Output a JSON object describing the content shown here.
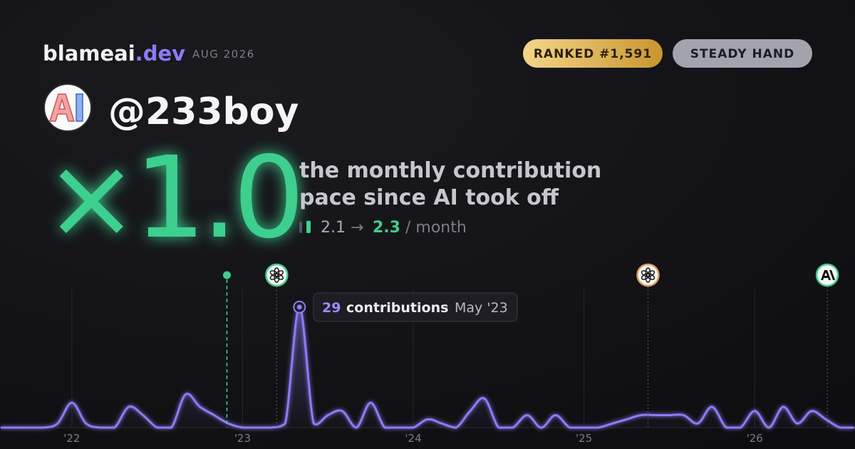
{
  "header": {
    "brand": "blameai",
    "brand_suffix": ".dev",
    "date": "AUG 2026",
    "badges": [
      "RANKED #1,591",
      "STEADY HAND"
    ]
  },
  "profile": {
    "handle": "@233boy"
  },
  "headline": {
    "multiplier": "×1.0",
    "description": [
      "the monthly contribution",
      "pace since AI took off"
    ],
    "before": 2.1,
    "arrow": "→",
    "after": 2.3,
    "unit": "/ month"
  },
  "tooltip": {
    "value": 29,
    "label": "contributions",
    "separator": "·",
    "date": "May '23"
  },
  "chart_data": {
    "type": "line",
    "color": "#8b7cf6",
    "highlight": 21,
    "ylim": [
      0,
      30
    ],
    "categories": [
      null,
      null,
      null,
      null,
      null,
      "'22",
      null,
      null,
      null,
      null,
      null,
      null,
      null,
      null,
      null,
      null,
      null,
      "'23",
      null,
      null,
      null,
      null,
      null,
      null,
      null,
      null,
      null,
      null,
      null,
      "'24",
      null,
      null,
      null,
      null,
      null,
      null,
      null,
      null,
      null,
      null,
      null,
      "'25",
      null,
      null,
      null,
      null,
      null,
      null,
      null,
      null,
      null,
      null,
      null,
      "'26",
      null,
      null,
      null,
      null,
      null,
      null,
      null
    ],
    "values": [
      0,
      0,
      0,
      0,
      1,
      6,
      1,
      0,
      0,
      5,
      3,
      0,
      0,
      8,
      5,
      3,
      1,
      0,
      0,
      0,
      1,
      29,
      1,
      3,
      4,
      0,
      6,
      0,
      0,
      0,
      2,
      1,
      0,
      4,
      7,
      0,
      0,
      3,
      0,
      3,
      0,
      0,
      0,
      1,
      2,
      3,
      3,
      3,
      3,
      1,
      5,
      0,
      0,
      4,
      0,
      5,
      1,
      4,
      2,
      0,
      0
    ],
    "events": [
      {
        "x": 15.9,
        "color": "#3ecf8e",
        "icon": "dot"
      },
      {
        "x": 19.4,
        "color": "#3ecf8e",
        "icon": "openai"
      },
      {
        "x": 45.5,
        "color": "#e0a060",
        "icon": "openai"
      },
      {
        "x": 58.1,
        "color": "#3ecf8e",
        "icon": "anthropic"
      }
    ]
  }
}
